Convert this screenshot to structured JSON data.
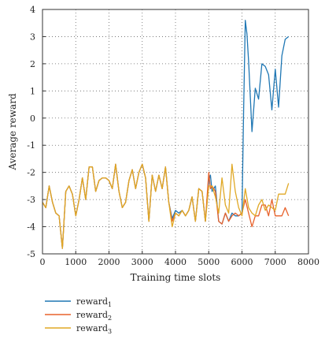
{
  "chart_data": {
    "type": "line",
    "xlabel": "Training time slots",
    "ylabel": "Average reward",
    "xlim": [
      0,
      8000
    ],
    "ylim": [
      -5,
      4
    ],
    "xticks": [
      "0",
      "1000",
      "2000",
      "3000",
      "4000",
      "5000",
      "6000",
      "7000",
      "8000"
    ],
    "yticks": [
      "4",
      "3",
      "2",
      "1",
      "0",
      "-1",
      "-2",
      "-3",
      "-4",
      "-5"
    ],
    "grid": "dotted",
    "legend_position": "below",
    "series": [
      {
        "name": "reward",
        "subscript": "1",
        "color": "#1f77b4",
        "x": [
          0,
          100,
          200,
          300,
          400,
          500,
          600,
          700,
          800,
          900,
          1000,
          1100,
          1200,
          1300,
          1400,
          1500,
          1600,
          1700,
          1800,
          1900,
          2000,
          2100,
          2200,
          2300,
          2400,
          2500,
          2600,
          2700,
          2800,
          2900,
          3000,
          3100,
          3200,
          3300,
          3400,
          3500,
          3600,
          3700,
          3800,
          3900,
          4000,
          4100,
          4200,
          4300,
          4400,
          4500,
          4600,
          4700,
          4800,
          4900,
          5000,
          5050,
          5100,
          5200,
          5300,
          5400,
          5500,
          5600,
          5700,
          5800,
          5900,
          6000,
          6050,
          6100,
          6150,
          6200,
          6300,
          6400,
          6500,
          6600,
          6700,
          6800,
          6900,
          7000,
          7100,
          7200,
          7300,
          7400
        ],
        "y": [
          -3.1,
          -3.3,
          -2.5,
          -3.1,
          -3.5,
          -3.6,
          -4.8,
          -2.7,
          -2.5,
          -2.8,
          -3.6,
          -3.0,
          -2.2,
          -3.0,
          -1.8,
          -1.8,
          -2.7,
          -2.3,
          -2.2,
          -2.2,
          -2.3,
          -2.6,
          -1.7,
          -2.7,
          -3.3,
          -3.1,
          -2.3,
          -1.9,
          -2.6,
          -2.0,
          -1.7,
          -2.2,
          -3.8,
          -2.1,
          -2.7,
          -2.1,
          -2.6,
          -1.8,
          -3.1,
          -3.7,
          -3.4,
          -3.5,
          -3.4,
          -3.6,
          -3.4,
          -2.9,
          -3.8,
          -2.6,
          -2.7,
          -3.8,
          -2.3,
          -2.1,
          -2.7,
          -2.5,
          -3.8,
          -3.9,
          -3.5,
          -3.8,
          -3.5,
          -3.6,
          -3.6,
          -3.5,
          0.3,
          3.6,
          3.1,
          2.1,
          -0.5,
          1.1,
          0.7,
          2.0,
          1.9,
          1.6,
          0.3,
          1.8,
          0.4,
          2.3,
          2.9,
          3.0
        ]
      },
      {
        "name": "reward",
        "subscript": "2",
        "color": "#e8622c",
        "x": [
          0,
          100,
          200,
          300,
          400,
          500,
          600,
          700,
          800,
          900,
          1000,
          1100,
          1200,
          1300,
          1400,
          1500,
          1600,
          1700,
          1800,
          1900,
          2000,
          2100,
          2200,
          2300,
          2400,
          2500,
          2600,
          2700,
          2800,
          2900,
          3000,
          3100,
          3200,
          3300,
          3400,
          3500,
          3600,
          3700,
          3800,
          3900,
          4000,
          4100,
          4200,
          4300,
          4400,
          4500,
          4600,
          4700,
          4800,
          4900,
          5000,
          5050,
          5100,
          5200,
          5300,
          5400,
          5500,
          5600,
          5700,
          5800,
          5900,
          6000,
          6100,
          6200,
          6300,
          6400,
          6500,
          6600,
          6700,
          6800,
          6900,
          7000,
          7100,
          7200,
          7300,
          7400
        ],
        "y": [
          -3.1,
          -3.3,
          -2.5,
          -3.1,
          -3.5,
          -3.6,
          -4.8,
          -2.7,
          -2.5,
          -2.8,
          -3.6,
          -3.0,
          -2.2,
          -3.0,
          -1.8,
          -1.8,
          -2.7,
          -2.3,
          -2.2,
          -2.2,
          -2.3,
          -2.6,
          -1.7,
          -2.7,
          -3.3,
          -3.1,
          -2.3,
          -1.9,
          -2.6,
          -2.0,
          -1.7,
          -2.2,
          -3.8,
          -2.1,
          -2.7,
          -2.1,
          -2.6,
          -1.8,
          -3.1,
          -3.8,
          -3.5,
          -3.6,
          -3.4,
          -3.6,
          -3.4,
          -2.9,
          -3.8,
          -2.6,
          -2.7,
          -3.8,
          -2.0,
          -2.6,
          -2.5,
          -2.7,
          -3.8,
          -3.9,
          -3.5,
          -3.8,
          -3.6,
          -3.5,
          -3.6,
          -3.5,
          -3.0,
          -3.5,
          -4.0,
          -3.6,
          -3.6,
          -3.2,
          -3.2,
          -3.6,
          -3.0,
          -3.6,
          -3.6,
          -3.6,
          -3.3,
          -3.6
        ]
      },
      {
        "name": "reward",
        "subscript": "3",
        "color": "#e0a825",
        "x": [
          0,
          100,
          200,
          300,
          400,
          500,
          600,
          700,
          800,
          900,
          1000,
          1100,
          1200,
          1300,
          1400,
          1500,
          1600,
          1700,
          1800,
          1900,
          2000,
          2100,
          2200,
          2300,
          2400,
          2500,
          2600,
          2700,
          2800,
          2900,
          3000,
          3100,
          3200,
          3300,
          3400,
          3500,
          3600,
          3700,
          3800,
          3900,
          4000,
          4100,
          4200,
          4300,
          4400,
          4500,
          4600,
          4700,
          4800,
          4900,
          5000,
          5100,
          5200,
          5300,
          5400,
          5500,
          5600,
          5700,
          5800,
          5900,
          6000,
          6100,
          6200,
          6300,
          6400,
          6500,
          6600,
          6700,
          6800,
          6900,
          7000,
          7100,
          7200,
          7300,
          7400
        ],
        "y": [
          -3.1,
          -3.3,
          -2.5,
          -3.1,
          -3.5,
          -3.6,
          -4.8,
          -2.7,
          -2.5,
          -2.8,
          -3.6,
          -3.0,
          -2.2,
          -3.0,
          -1.8,
          -1.8,
          -2.7,
          -2.3,
          -2.2,
          -2.2,
          -2.3,
          -2.6,
          -1.7,
          -2.7,
          -3.3,
          -3.1,
          -2.3,
          -1.9,
          -2.6,
          -2.0,
          -1.7,
          -2.2,
          -3.8,
          -2.1,
          -2.7,
          -2.1,
          -2.6,
          -1.8,
          -3.1,
          -4.0,
          -3.5,
          -3.6,
          -3.4,
          -3.6,
          -3.4,
          -2.9,
          -3.8,
          -2.6,
          -2.7,
          -3.8,
          -2.5,
          -2.5,
          -2.9,
          -3.5,
          -2.2,
          -3.2,
          -3.5,
          -1.7,
          -2.7,
          -3.3,
          -3.6,
          -2.6,
          -3.3,
          -3.5,
          -3.6,
          -3.2,
          -3.0,
          -3.4,
          -3.2,
          -3.3,
          -3.4,
          -2.8,
          -2.8,
          -2.8,
          -2.4
        ]
      }
    ]
  }
}
